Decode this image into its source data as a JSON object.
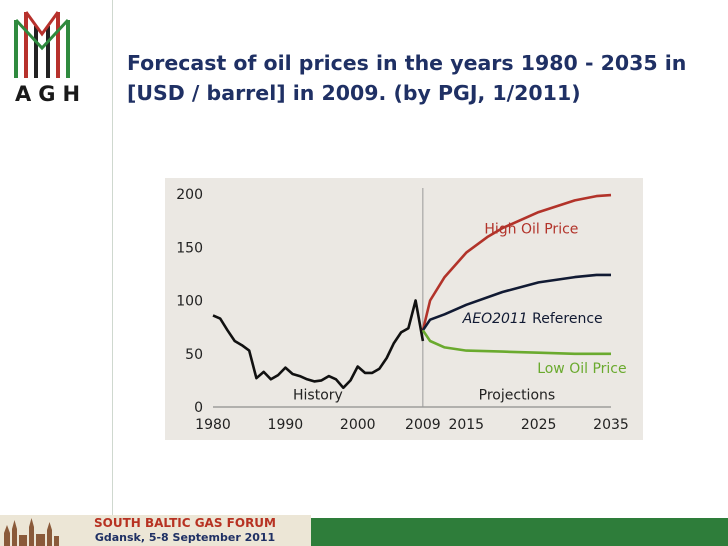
{
  "logo": {
    "text": "AGH"
  },
  "slide": {
    "title": "Forecast of oil prices in the years 1980 - 2035 in [USD / barrel] in 2009. (by PGJ, 1/2011)"
  },
  "footer": {
    "title": "SOUTH BALTIC GAS FORUM",
    "subtitle": "Gdansk, 5-8 September 2011",
    "colors": {
      "green": "#2e7d3a",
      "banner": "#ece6d6"
    }
  },
  "chart_data": {
    "type": "line",
    "title": "",
    "xlabel": "",
    "ylabel": "",
    "x_ticks": [
      "1980",
      "1990",
      "2000",
      "2009",
      "2015",
      "2025",
      "2035"
    ],
    "x_tick_values": [
      1980,
      1990,
      2000,
      2009,
      2015,
      2025,
      2035
    ],
    "y_ticks": [
      "0",
      "50",
      "100",
      "150",
      "200"
    ],
    "xlim": [
      1980,
      2035
    ],
    "ylim": [
      0,
      200
    ],
    "grid": false,
    "divider_year": 2009,
    "annotations": {
      "history": "History",
      "projections": "Projections",
      "high": "High Oil Price",
      "ref_italic": "AEO2011",
      "ref_rest": " Reference",
      "low": "Low Oil Price"
    },
    "series": [
      {
        "name": "History",
        "color": "#111111",
        "points": [
          [
            1980,
            86
          ],
          [
            1981,
            83
          ],
          [
            1982,
            72
          ],
          [
            1983,
            62
          ],
          [
            1984,
            58
          ],
          [
            1985,
            53
          ],
          [
            1986,
            27
          ],
          [
            1987,
            33
          ],
          [
            1988,
            26
          ],
          [
            1989,
            30
          ],
          [
            1990,
            37
          ],
          [
            1991,
            31
          ],
          [
            1992,
            29
          ],
          [
            1993,
            26
          ],
          [
            1994,
            24
          ],
          [
            1995,
            25
          ],
          [
            1996,
            29
          ],
          [
            1997,
            26
          ],
          [
            1998,
            18
          ],
          [
            1999,
            25
          ],
          [
            2000,
            38
          ],
          [
            2001,
            32
          ],
          [
            2002,
            32
          ],
          [
            2003,
            36
          ],
          [
            2004,
            46
          ],
          [
            2005,
            60
          ],
          [
            2006,
            70
          ],
          [
            2007,
            74
          ],
          [
            2008,
            100
          ],
          [
            2009,
            62
          ]
        ]
      },
      {
        "name": "High Oil Price",
        "color": "#b2332a",
        "points": [
          [
            2009,
            72
          ],
          [
            2010,
            100
          ],
          [
            2012,
            122
          ],
          [
            2015,
            145
          ],
          [
            2018,
            160
          ],
          [
            2020,
            168
          ],
          [
            2025,
            183
          ],
          [
            2030,
            194
          ],
          [
            2033,
            198
          ],
          [
            2035,
            199
          ]
        ]
      },
      {
        "name": "AEO2011 Reference",
        "color": "#111a33",
        "points": [
          [
            2009,
            72
          ],
          [
            2010,
            82
          ],
          [
            2012,
            87
          ],
          [
            2015,
            96
          ],
          [
            2020,
            108
          ],
          [
            2025,
            117
          ],
          [
            2030,
            122
          ],
          [
            2033,
            124
          ],
          [
            2035,
            124
          ]
        ]
      },
      {
        "name": "Low Oil Price",
        "color": "#6aaa2e",
        "points": [
          [
            2009,
            72
          ],
          [
            2010,
            62
          ],
          [
            2012,
            56
          ],
          [
            2015,
            53
          ],
          [
            2020,
            52
          ],
          [
            2025,
            51
          ],
          [
            2030,
            50
          ],
          [
            2035,
            50
          ]
        ]
      }
    ]
  }
}
